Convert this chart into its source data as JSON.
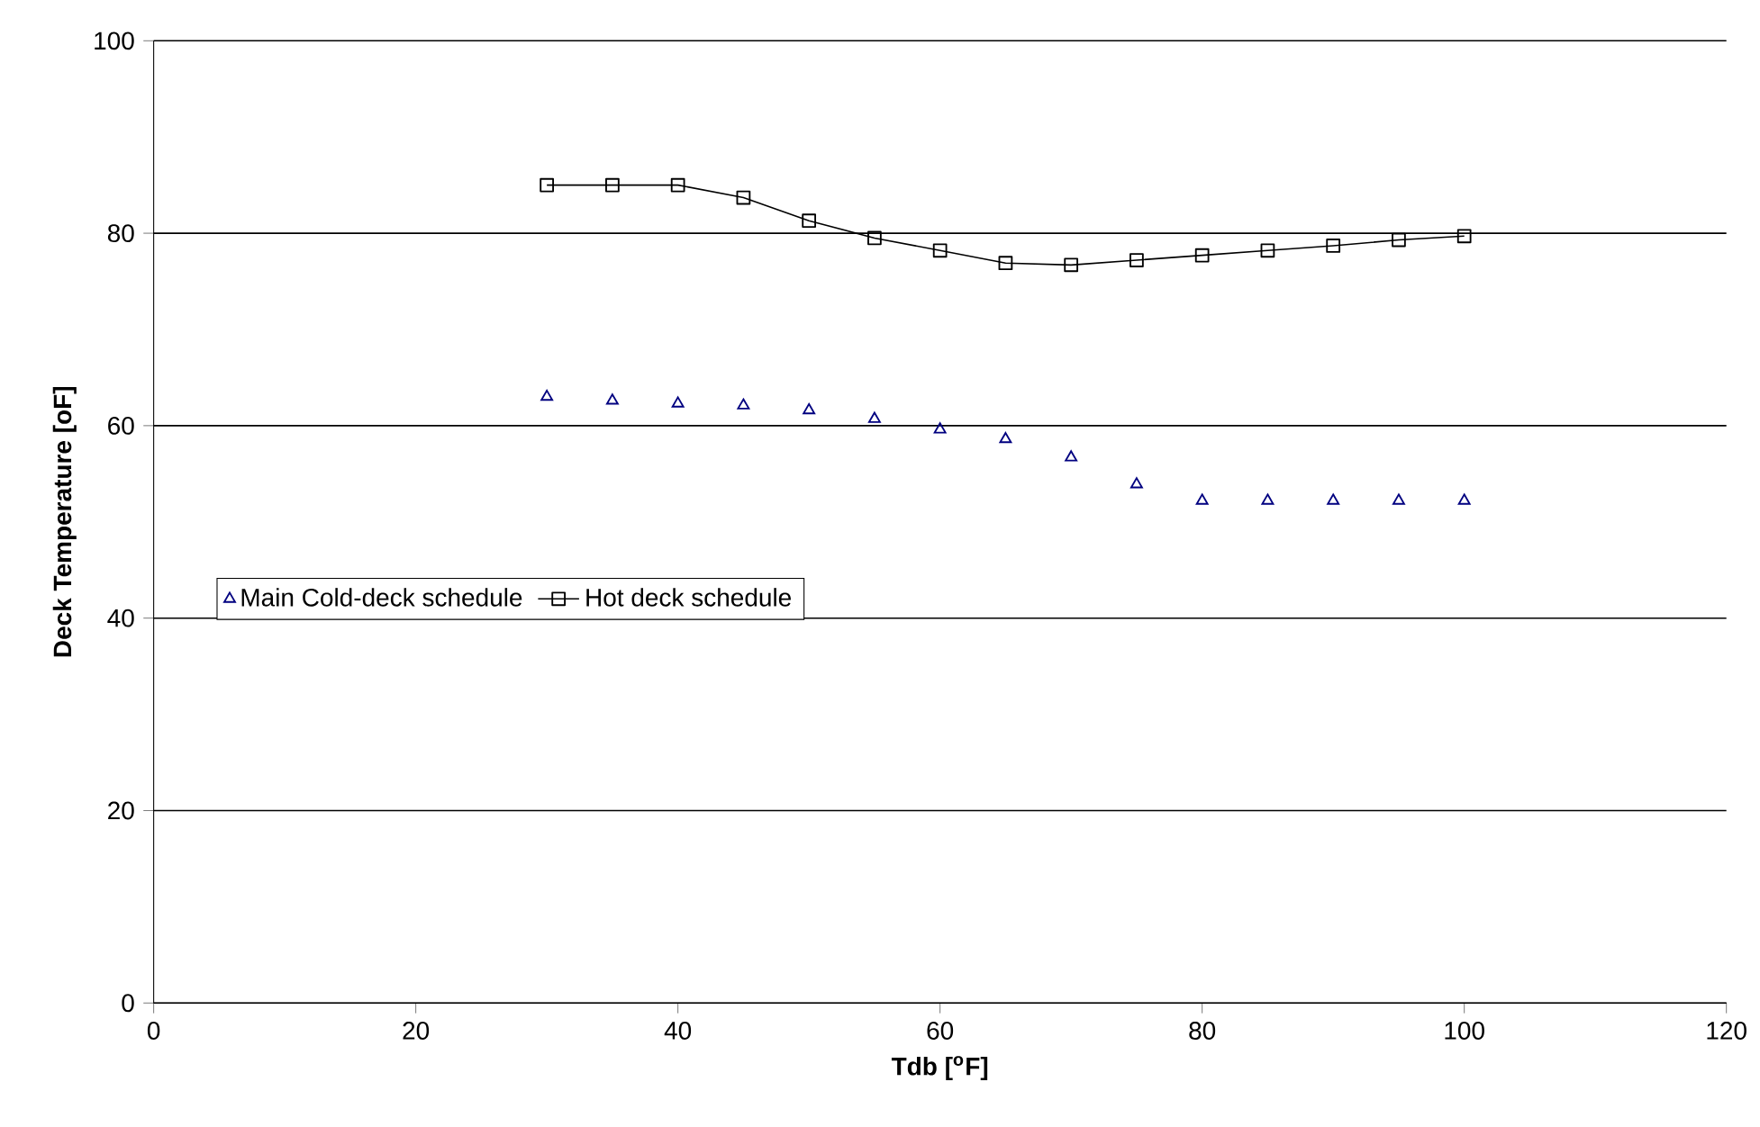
{
  "chart_data": {
    "type": "line",
    "xlabel": "Tdb [$^{o}$F]",
    "ylabel": "Deck Temperature [oF]",
    "xlim": [
      0,
      120
    ],
    "xticks": [
      0,
      20,
      40,
      60,
      80,
      100,
      120
    ],
    "ylim": [
      0,
      100
    ],
    "yticks": [
      0,
      20,
      40,
      60,
      80,
      100
    ],
    "grid": "y",
    "legend": "left",
    "x": [
      30,
      35,
      40,
      45,
      50,
      55,
      60,
      65,
      70,
      75,
      80,
      85,
      90,
      95,
      100
    ],
    "series": [
      {
        "name": "Main Cold-deck schedule",
        "type": "scatter",
        "marker": "triangle",
        "color": "#000080",
        "values": [
          63.0,
          62.6,
          62.3,
          62.1,
          61.6,
          60.7,
          59.6,
          58.6,
          56.7,
          53.9,
          52.2,
          52.2,
          52.2,
          52.2,
          52.2
        ]
      },
      {
        "name": "Hot deck schedule",
        "marker": "square",
        "color": "#000000",
        "values": [
          85.0,
          85.0,
          85.0,
          83.7,
          81.3,
          79.5,
          78.2,
          76.9,
          76.7,
          77.2,
          77.7,
          78.2,
          78.7,
          79.3,
          79.7
        ]
      }
    ]
  }
}
